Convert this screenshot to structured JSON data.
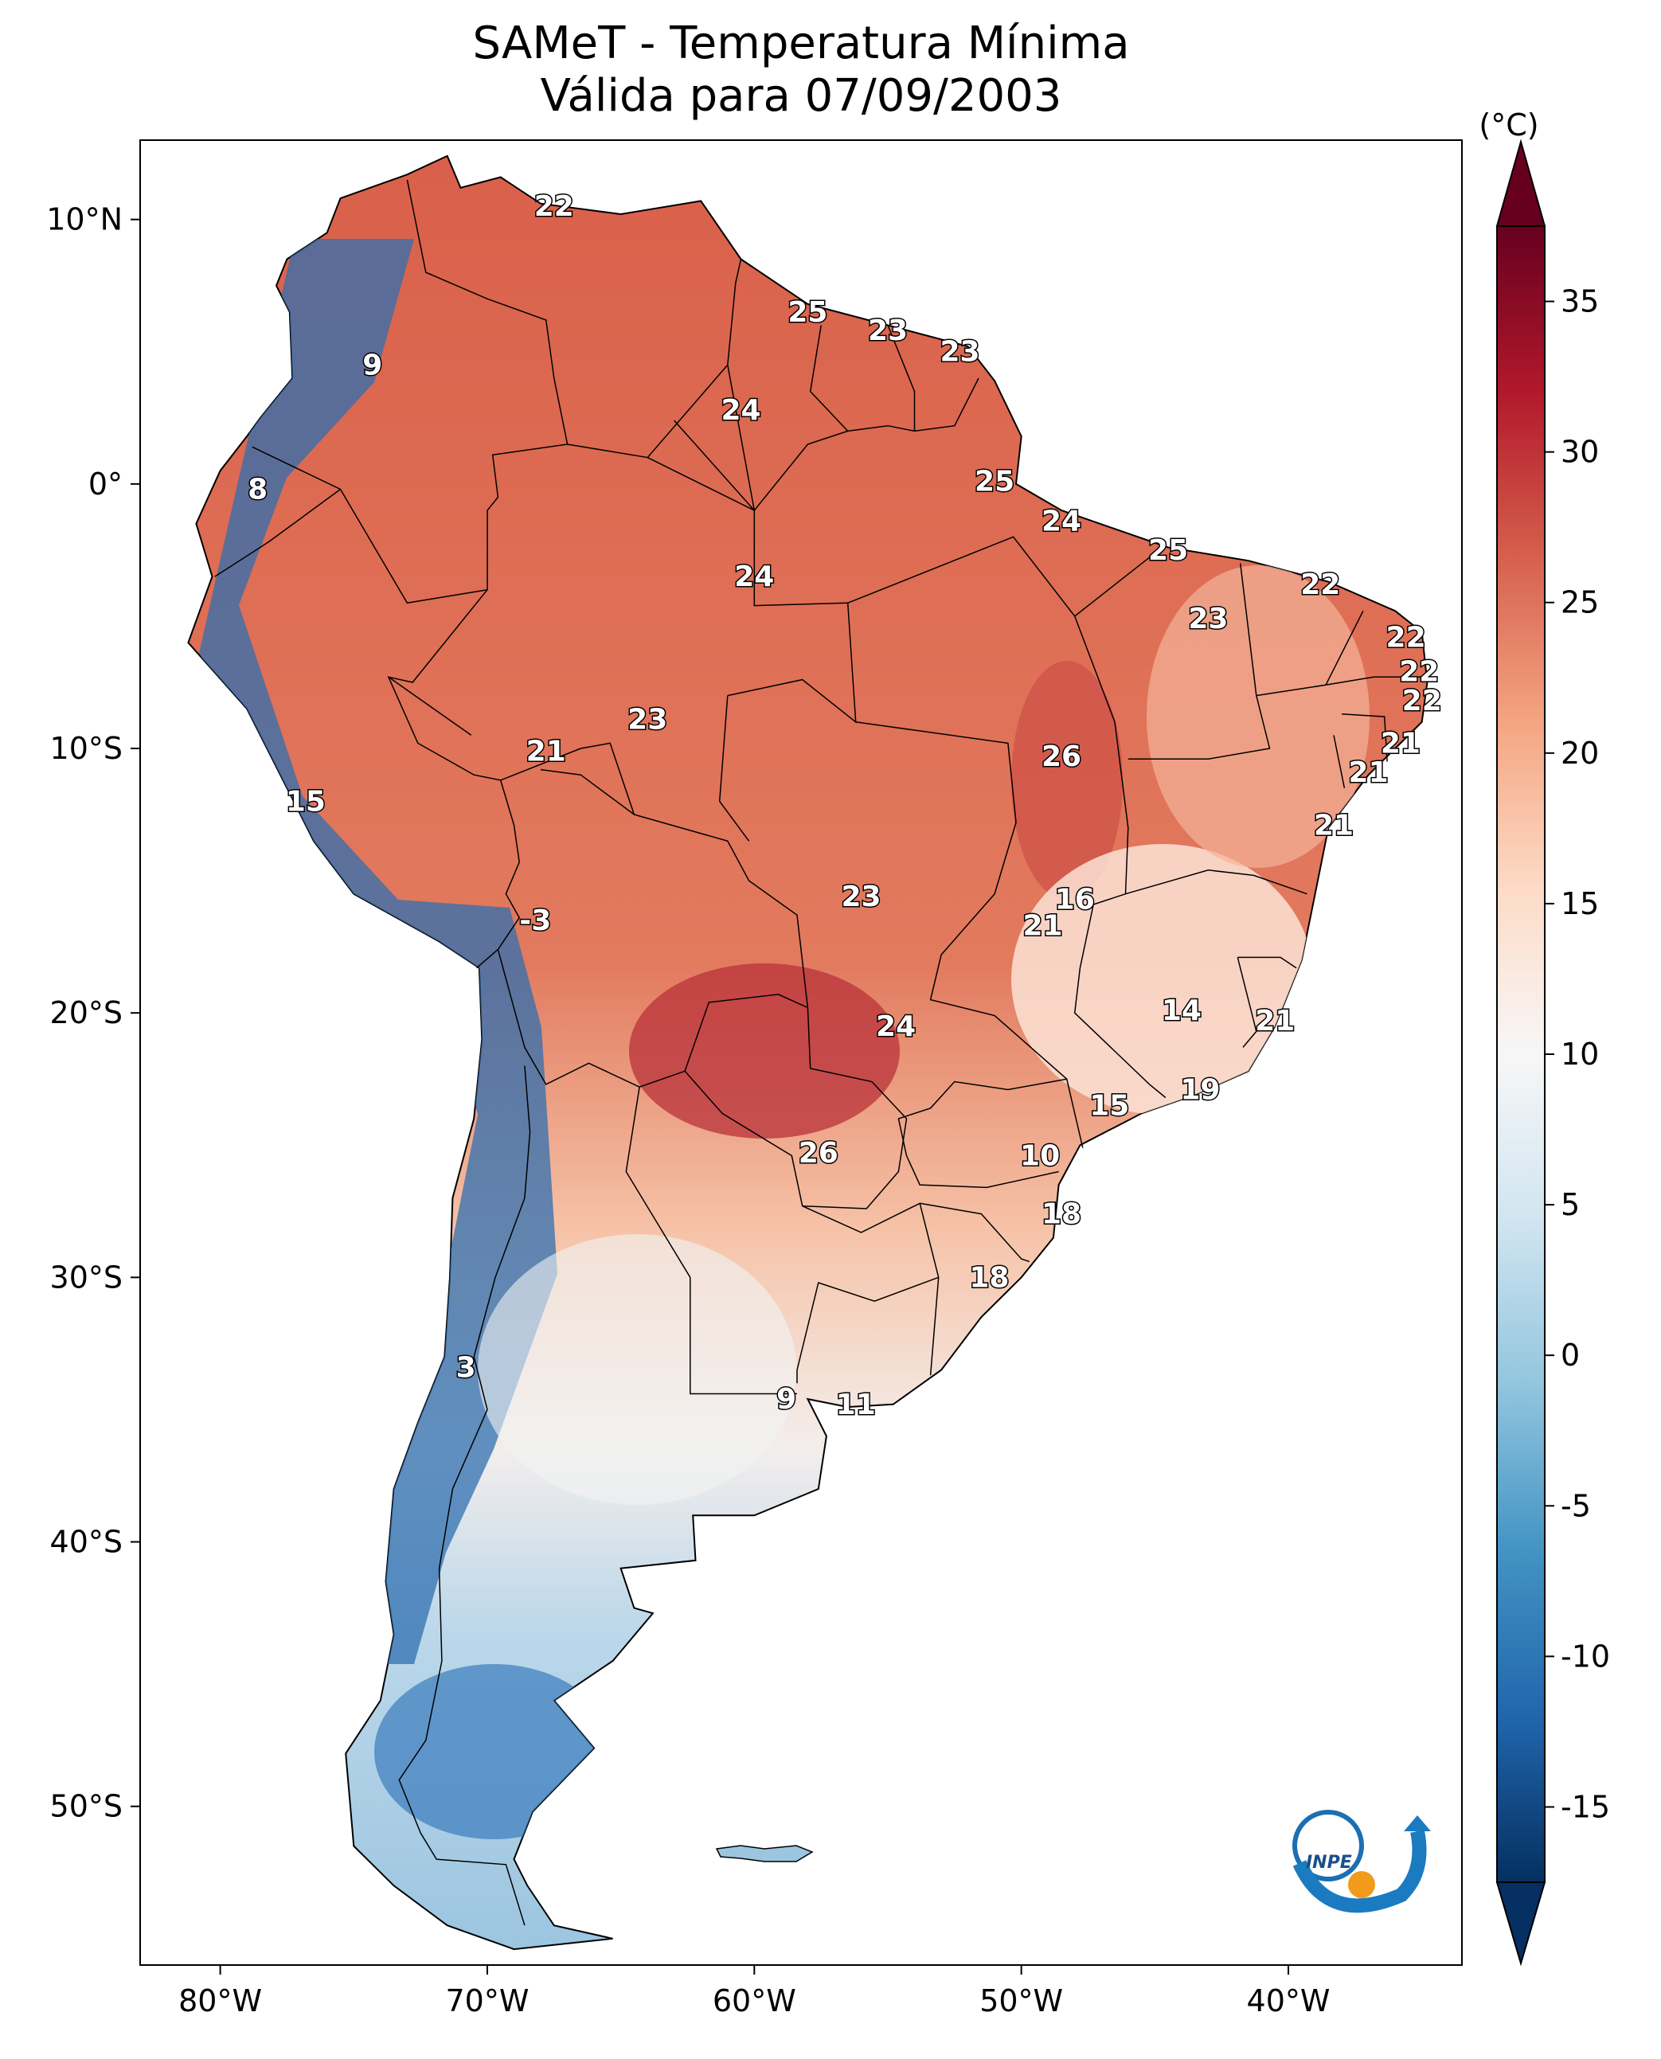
{
  "title": {
    "line1": "SAMeT - Temperatura Mínima",
    "line2": "Válida para 07/09/2003"
  },
  "map": {
    "lon_ticks": [
      "80°W",
      "70°W",
      "60°W",
      "50°W",
      "40°W"
    ],
    "lat_ticks": [
      "10°N",
      "0°",
      "10°S",
      "20°S",
      "30°S",
      "40°S",
      "50°S"
    ],
    "extent": {
      "lon_min": -83,
      "lon_max": -33.5,
      "lat_min": -56,
      "lat_max": 13
    }
  },
  "colorbar": {
    "unit": "(°C)",
    "ticks": [
      "35",
      "30",
      "25",
      "20",
      "15",
      "10",
      "5",
      "0",
      "-5",
      "-10",
      "-15"
    ],
    "colors": [
      "#67001f",
      "#b2182b",
      "#d6604d",
      "#f4a582",
      "#fddbc7",
      "#f7f7f7",
      "#d1e5f0",
      "#92c5de",
      "#4393c3",
      "#2166ac",
      "#053061"
    ]
  },
  "station_labels": [
    {
      "text": "22",
      "lon": -67.5,
      "lat": 10.5
    },
    {
      "text": "9",
      "lon": -74.3,
      "lat": 4.5
    },
    {
      "text": "25",
      "lon": -58.0,
      "lat": 6.5
    },
    {
      "text": "23",
      "lon": -55.0,
      "lat": 5.8
    },
    {
      "text": "23",
      "lon": -52.3,
      "lat": 5.0
    },
    {
      "text": "24",
      "lon": -60.5,
      "lat": 2.8
    },
    {
      "text": "8",
      "lon": -78.6,
      "lat": -0.2
    },
    {
      "text": "25",
      "lon": -51.0,
      "lat": 0.1
    },
    {
      "text": "24",
      "lon": -48.5,
      "lat": -1.4
    },
    {
      "text": "25",
      "lon": -44.5,
      "lat": -2.5
    },
    {
      "text": "22",
      "lon": -38.8,
      "lat": -3.8
    },
    {
      "text": "24",
      "lon": -60.0,
      "lat": -3.5
    },
    {
      "text": "23",
      "lon": -43.0,
      "lat": -5.1
    },
    {
      "text": "22",
      "lon": -35.6,
      "lat": -5.8
    },
    {
      "text": "22",
      "lon": -35.1,
      "lat": -7.1
    },
    {
      "text": "22",
      "lon": -35.0,
      "lat": -8.2
    },
    {
      "text": "23",
      "lon": -64.0,
      "lat": -8.9
    },
    {
      "text": "21",
      "lon": -67.8,
      "lat": -10.1
    },
    {
      "text": "26",
      "lon": -48.5,
      "lat": -10.3
    },
    {
      "text": "21",
      "lon": -35.8,
      "lat": -9.8
    },
    {
      "text": "21",
      "lon": -37.0,
      "lat": -10.9
    },
    {
      "text": "15",
      "lon": -76.8,
      "lat": -12.0
    },
    {
      "text": "21",
      "lon": -38.3,
      "lat": -12.9
    },
    {
      "text": "23",
      "lon": -56.0,
      "lat": -15.6
    },
    {
      "text": "16",
      "lon": -48.0,
      "lat": -15.7
    },
    {
      "text": "21",
      "lon": -49.2,
      "lat": -16.7
    },
    {
      "text": "-3",
      "lon": -68.2,
      "lat": -16.5
    },
    {
      "text": "14",
      "lon": -44.0,
      "lat": -19.9
    },
    {
      "text": "21",
      "lon": -40.5,
      "lat": -20.3
    },
    {
      "text": "24",
      "lon": -54.7,
      "lat": -20.5
    },
    {
      "text": "19",
      "lon": -43.3,
      "lat": -22.9
    },
    {
      "text": "15",
      "lon": -46.7,
      "lat": -23.5
    },
    {
      "text": "26",
      "lon": -57.6,
      "lat": -25.3
    },
    {
      "text": "10",
      "lon": -49.3,
      "lat": -25.4
    },
    {
      "text": "18",
      "lon": -48.5,
      "lat": -27.6
    },
    {
      "text": "18",
      "lon": -51.2,
      "lat": -30.0
    },
    {
      "text": "3",
      "lon": -70.8,
      "lat": -33.4
    },
    {
      "text": "9",
      "lon": -58.8,
      "lat": -34.6
    },
    {
      "text": "11",
      "lon": -56.2,
      "lat": -34.8
    }
  ],
  "logo": {
    "text": "INPE"
  }
}
